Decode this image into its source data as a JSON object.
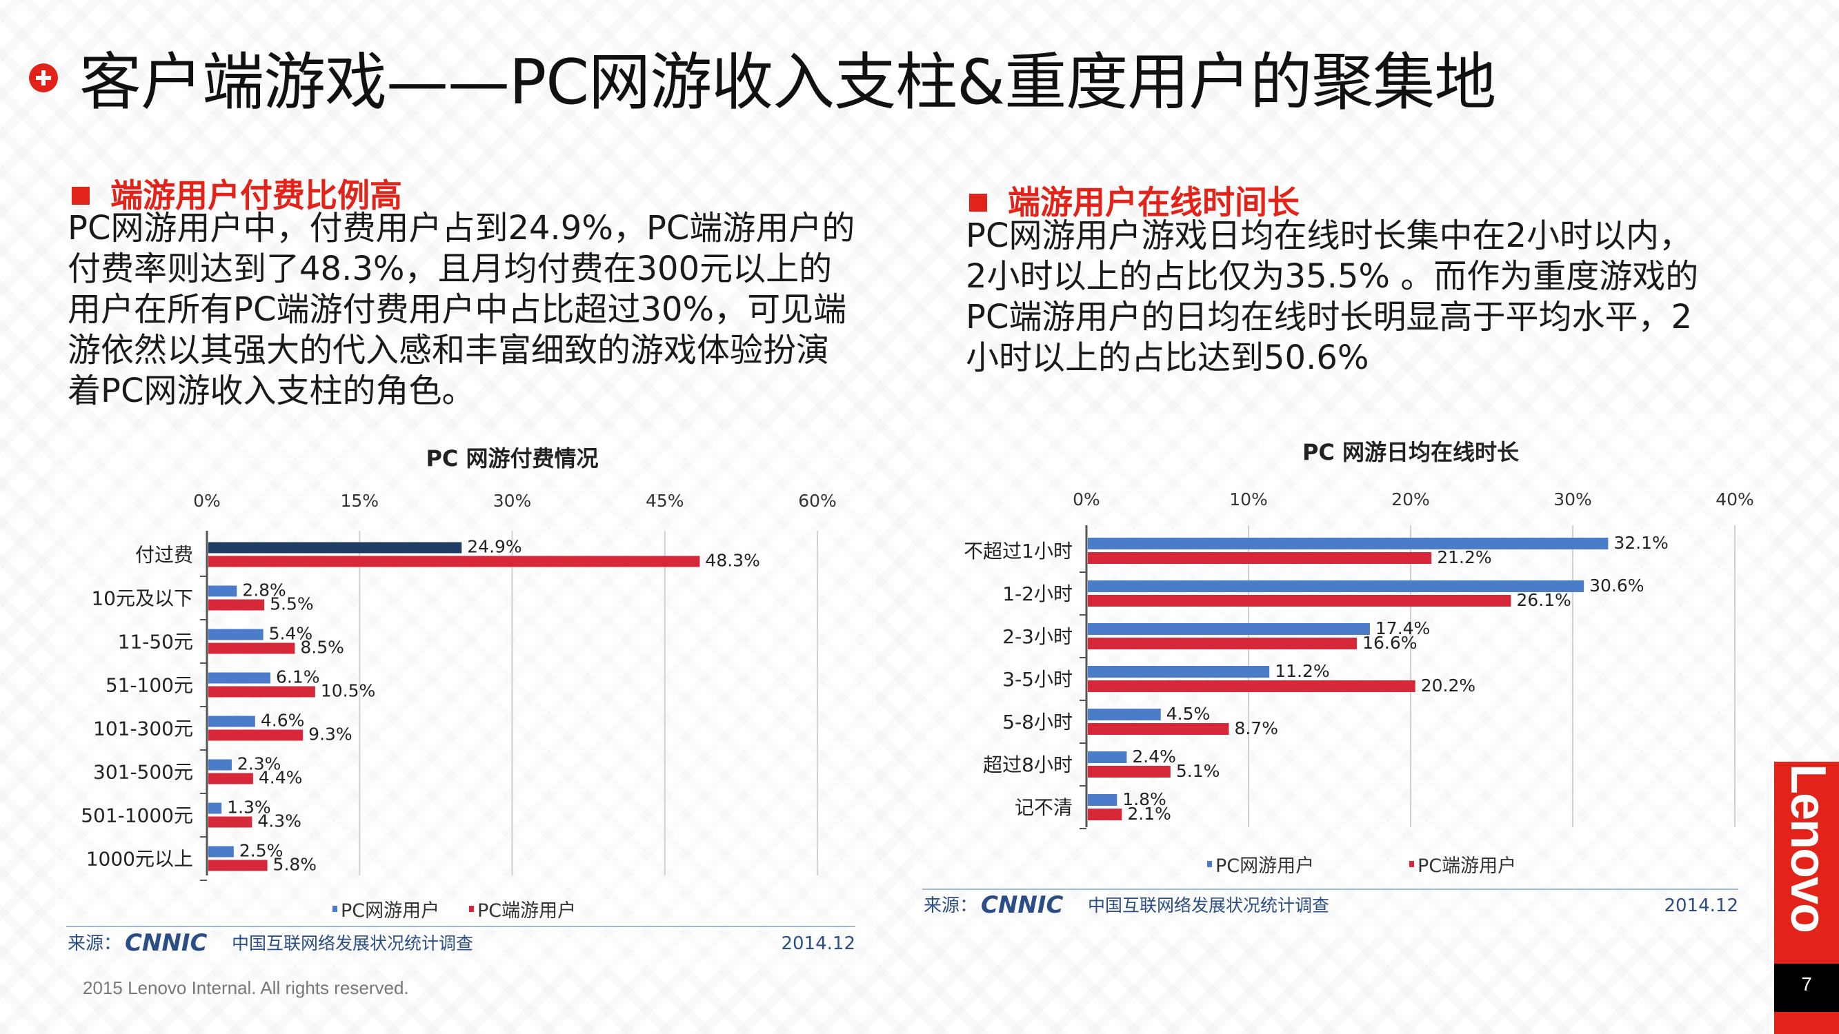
{
  "title": "客户端游戏——PC网游收入支柱&重度用户的聚集地",
  "left": {
    "heading": "端游用户付费比例高",
    "lines": [
      "PC网游用户中，付费用户占到24.9%，PC端游用户的",
      "付费率则达到了48.3%，且月均付费在300元以上的",
      "用户在所有PC端游付费用户中占比超过30%，可见端",
      "游依然以其强大的代入感和丰富细致的游戏体验扮演",
      "着PC网游收入支柱的角色。"
    ]
  },
  "right": {
    "heading": "端游用户在线时间长",
    "lines": [
      "PC网游用户游戏日均在线时长集中在2小时以内，",
      "2小时以上的占比仅为35.5% 。而作为重度游戏的",
      "PC端游用户的日均在线时长明显高于平均水平，2",
      "小时以上的占比达到50.6%"
    ]
  },
  "footer": "2015 Lenovo Internal. All rights reserved.",
  "brand": "Lenovo",
  "page_number": "7",
  "colors": {
    "accent": "#e2231a",
    "series_blue": "#4a7cc9",
    "series_dark": "#1f3d64",
    "series_red": "#d7283a"
  },
  "chart_data": [
    {
      "type": "bar",
      "orientation": "horizontal",
      "title": "PC 网游付费情况",
      "categories": [
        "付过费",
        "10元及以下",
        "11-50元",
        "51-100元",
        "101-300元",
        "301-500元",
        "501-1000元",
        "1000元以上"
      ],
      "series": [
        {
          "name": "PC网游用户",
          "values": [
            24.9,
            2.8,
            5.4,
            6.1,
            4.6,
            2.3,
            1.3,
            2.5
          ]
        },
        {
          "name": "PC端游用户",
          "values": [
            48.3,
            5.5,
            8.5,
            10.5,
            9.3,
            4.4,
            4.3,
            5.8
          ]
        }
      ],
      "xticks": [
        "0%",
        "15%",
        "30%",
        "45%",
        "60%"
      ],
      "xlim": [
        0,
        60
      ],
      "unit": "%",
      "legend": "bottom",
      "source_label": "来源：",
      "source_logo": "CNNIC",
      "source_name": "中国互联网络发展状况统计调查",
      "date": "2014.12"
    },
    {
      "type": "bar",
      "orientation": "horizontal",
      "title": "PC 网游日均在线时长",
      "categories": [
        "不超过1小时",
        "1-2小时",
        "2-3小时",
        "3-5小时",
        "5-8小时",
        "超过8小时",
        "记不清"
      ],
      "series": [
        {
          "name": "PC网游用户",
          "values": [
            32.1,
            30.6,
            17.4,
            11.2,
            4.5,
            2.4,
            1.8
          ]
        },
        {
          "name": "PC端游用户",
          "values": [
            21.2,
            26.1,
            16.6,
            20.2,
            8.7,
            5.1,
            2.1
          ]
        }
      ],
      "xticks": [
        "0%",
        "10%",
        "20%",
        "30%",
        "40%"
      ],
      "xlim": [
        0,
        40
      ],
      "unit": "%",
      "legend": "bottom",
      "source_label": "来源：",
      "source_logo": "CNNIC",
      "source_name": "中国互联网络发展状况统计调查",
      "date": "2014.12"
    }
  ]
}
